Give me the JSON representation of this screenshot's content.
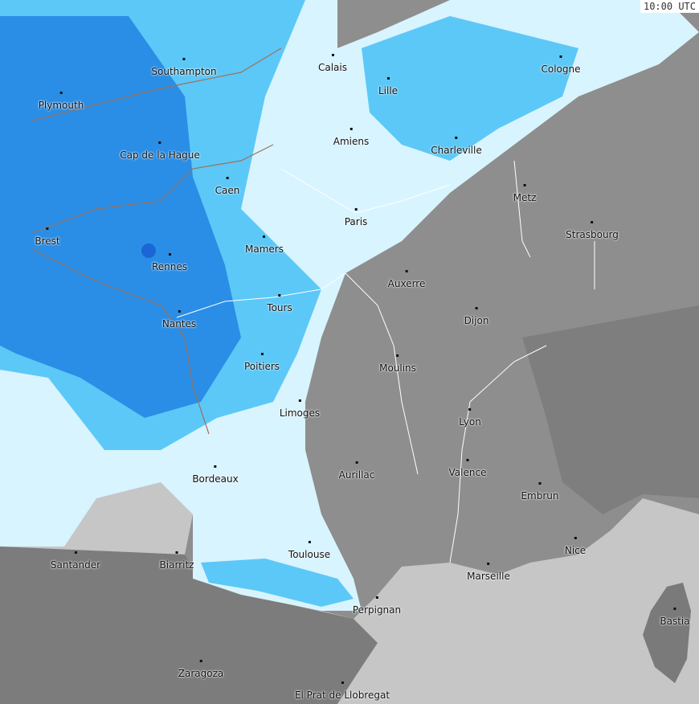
{
  "timestamp": "10:00 UTC",
  "colors": {
    "sea": "#c6c6c6",
    "land": "#8e8e8e",
    "land_dark": "#7a7a7a",
    "rain_light": "#d8f4ff",
    "rain_mid": "#5cc8f8",
    "rain_heavy": "#2a8ee6",
    "rain_strong": "#1a66d6",
    "rivers": "#ffffff",
    "coast": "#a0705a"
  },
  "cities": [
    "Southampton",
    "Calais",
    "Lille",
    "Cologne",
    "Plymouth",
    "Cap de la Hague",
    "Amiens",
    "Charleville",
    "Caen",
    "Metz",
    "Paris",
    "Strasbourg",
    "Brest",
    "Mamers",
    "Rennes",
    "Auxerre",
    "Tours",
    "Dijon",
    "Nantes",
    "Poitiers",
    "Moulins",
    "Limoges",
    "Lyon",
    "Valence",
    "Aurillac",
    "Bordeaux",
    "Embrun",
    "Nice",
    "Toulouse",
    "Santander",
    "Biarritz",
    "Marseille",
    "Perpignan",
    "Bastia",
    "Zaragoza",
    "El Prat de Llobregat"
  ]
}
